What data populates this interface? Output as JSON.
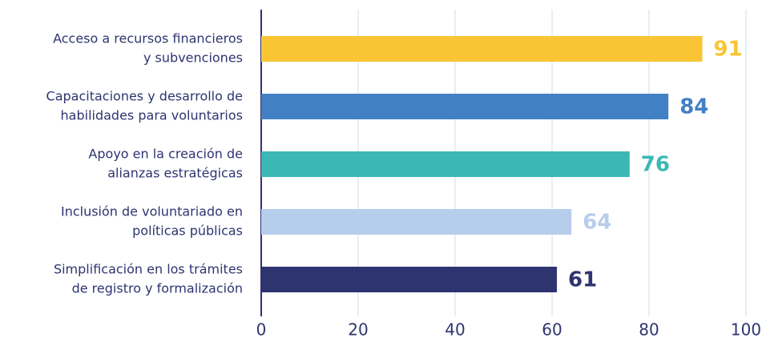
{
  "chart_data": {
    "type": "barh",
    "categories": [
      [
        "Acceso a recursos financieros",
        "y subvenciones"
      ],
      [
        "Capacitaciones y desarrollo de",
        "habilidades para voluntarios"
      ],
      [
        "Apoyo en la creación de",
        "alianzas estratégicas"
      ],
      [
        "Inclusión de voluntariado en",
        "políticas públicas"
      ],
      [
        "Simplificación en los trámites",
        "de registro y formalización"
      ]
    ],
    "values": [
      91,
      84,
      76,
      64,
      61
    ],
    "colors": [
      "#f9c535",
      "#4280c4",
      "#3bb8b4",
      "#b7cdec",
      "#2e3470"
    ],
    "xlim": [
      0,
      100
    ],
    "xticks": [
      0,
      20,
      40,
      60,
      80,
      100
    ],
    "grid": true
  }
}
